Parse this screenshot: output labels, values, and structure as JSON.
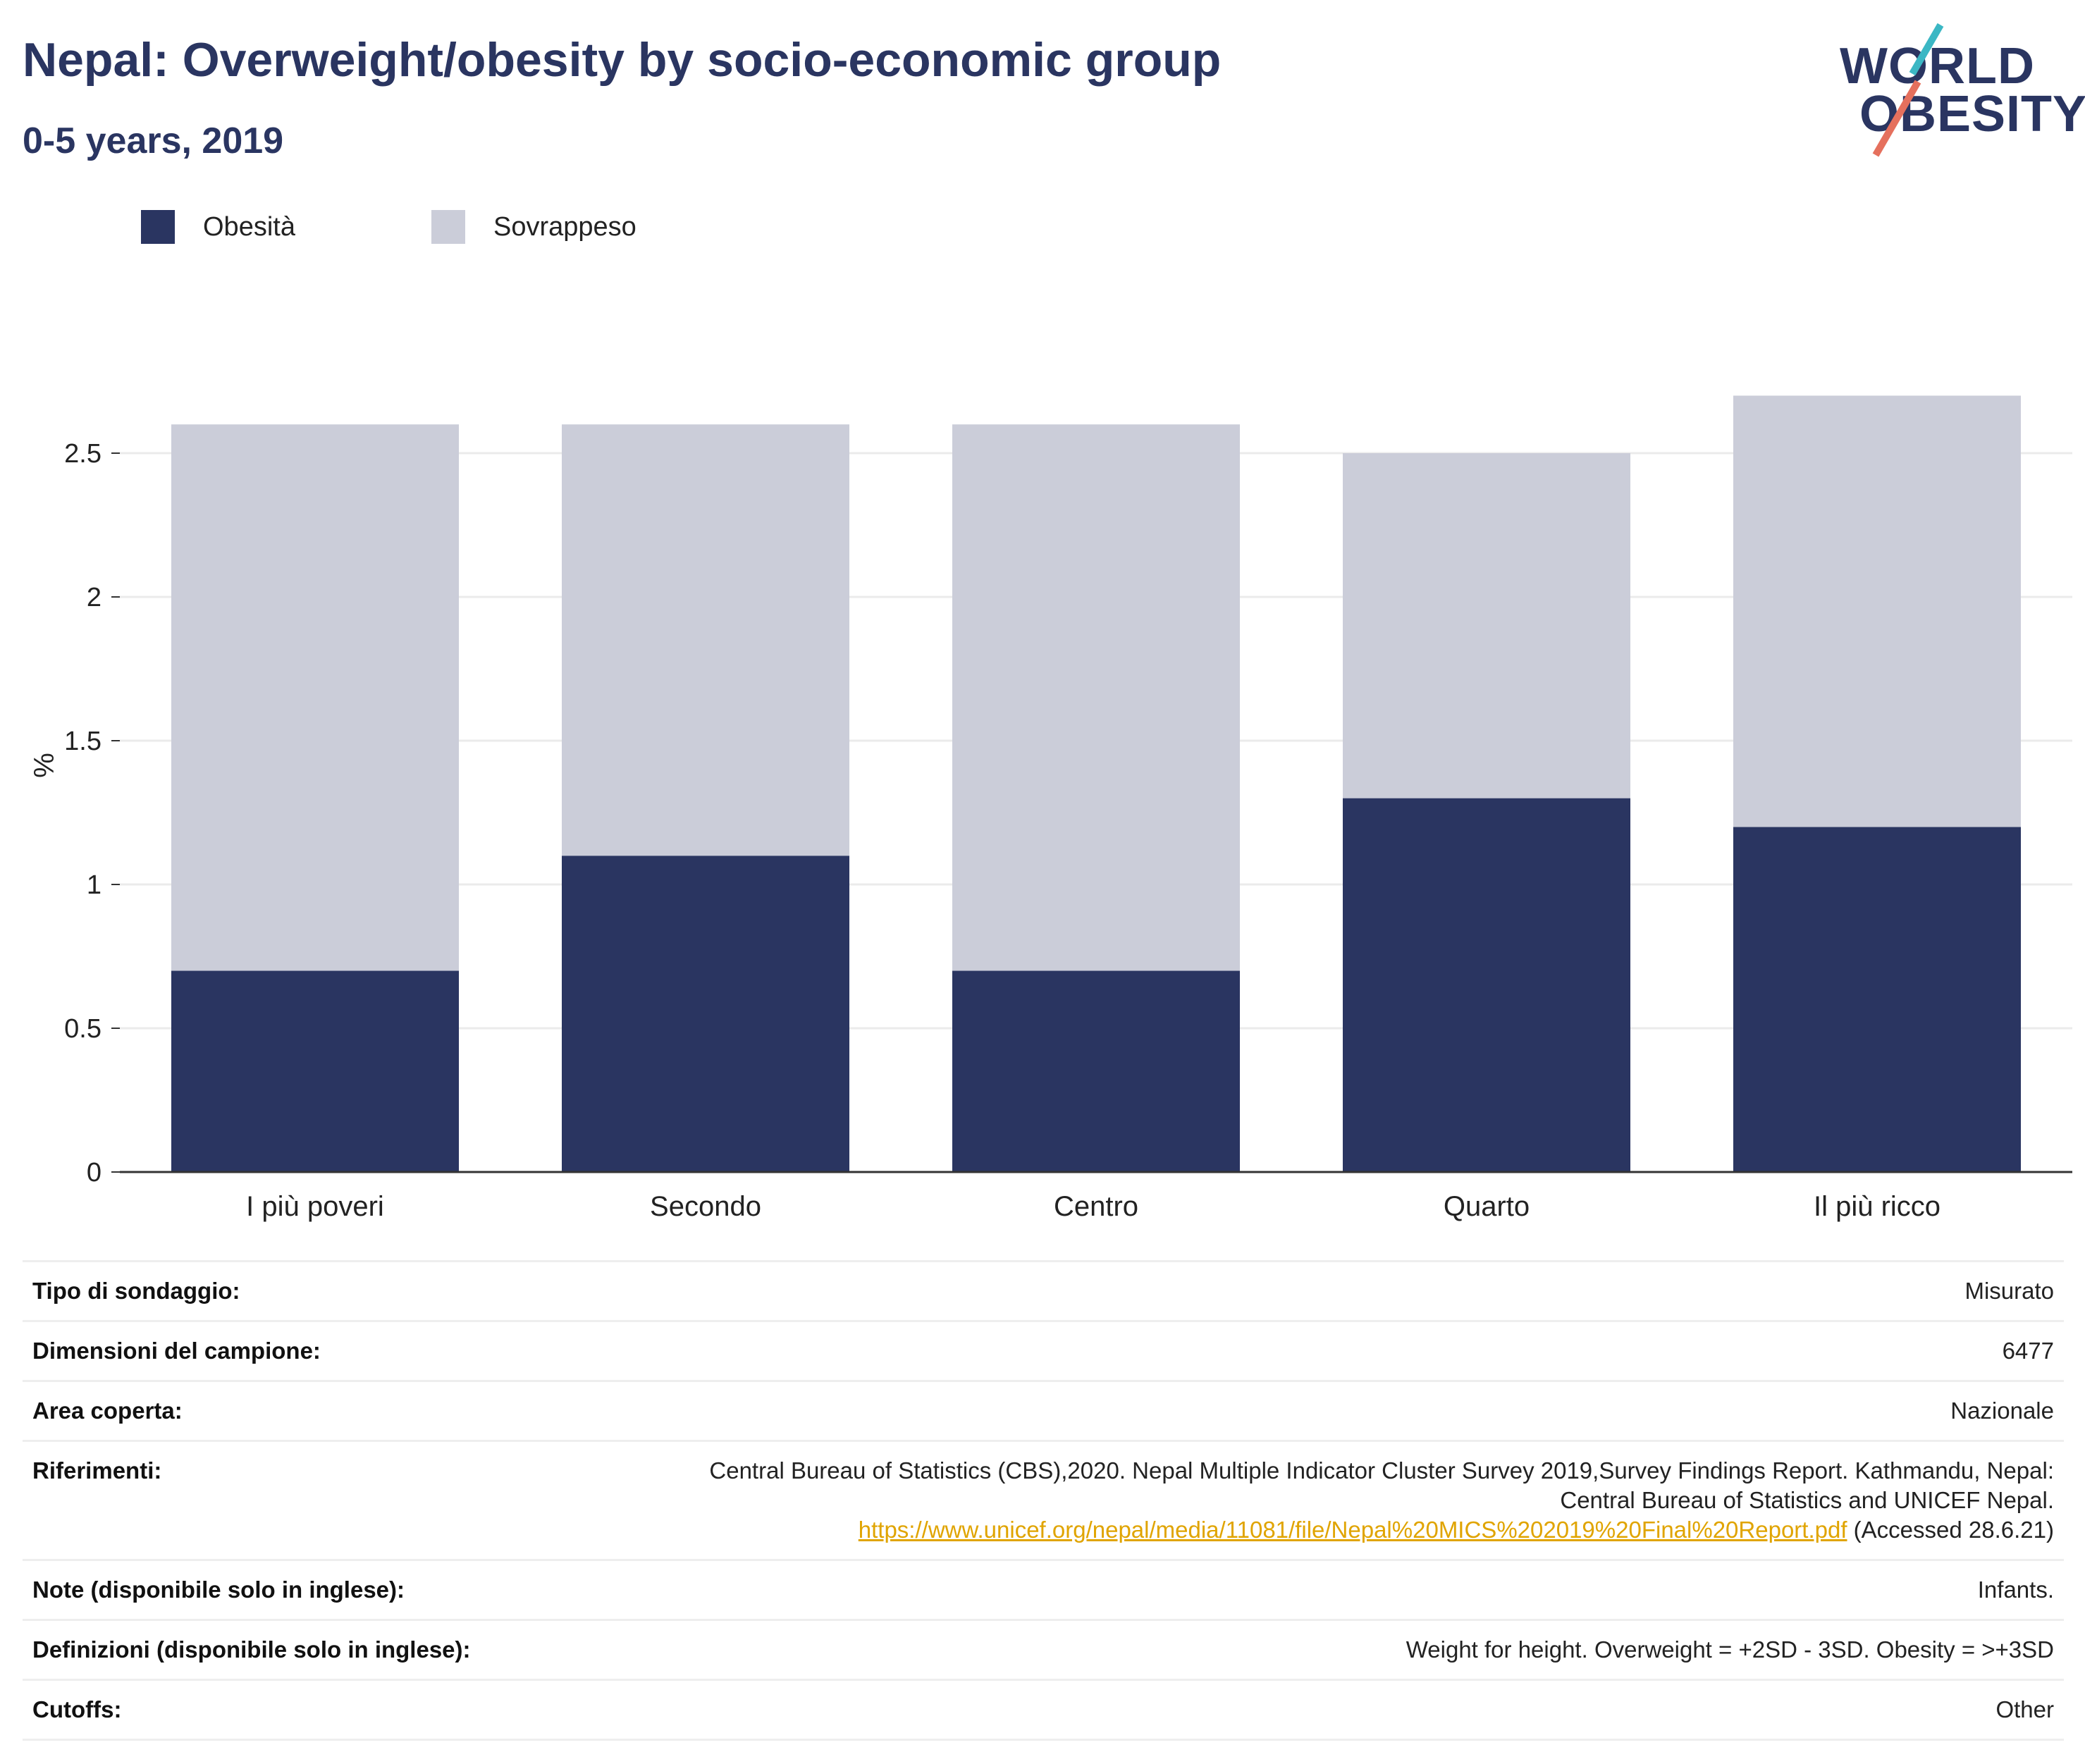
{
  "header": {
    "title": "Nepal: Overweight/obesity by socio-economic group",
    "subtitle": "0-5 years, 2019"
  },
  "logo": {
    "line1": "WORLD",
    "line2": "OBESITY"
  },
  "colors": {
    "obesity": "#2a3561",
    "overweight": "#cbcdd9",
    "accent_teal": "#3bb7c4",
    "accent_coral": "#e5705d",
    "link": "#e0a400"
  },
  "legend": [
    {
      "label": "Obesità",
      "color": "#2a3561"
    },
    {
      "label": "Sovrappeso",
      "color": "#cbcdd9"
    }
  ],
  "chart_data": {
    "type": "bar",
    "stacked": true,
    "categories": [
      "I più poveri",
      "Secondo",
      "Centro",
      "Quarto",
      "Il più ricco"
    ],
    "series": [
      {
        "name": "Obesità",
        "values": [
          0.7,
          1.1,
          0.7,
          1.3,
          1.2
        ]
      },
      {
        "name": "Sovrappeso",
        "values": [
          1.9,
          1.5,
          1.9,
          1.2,
          1.5
        ]
      }
    ],
    "totals": [
      2.6,
      2.6,
      2.6,
      2.5,
      2.7
    ],
    "ylabel": "%",
    "ylim": [
      0,
      2.8
    ],
    "yticks": [
      "0",
      "0.5",
      "1",
      "1.5",
      "2",
      "2.5"
    ],
    "ytick_values": [
      0,
      0.5,
      1,
      1.5,
      2,
      2.5
    ],
    "grid": true,
    "legend_position": "top-left"
  },
  "info": {
    "survey_type": {
      "label": "Tipo di sondaggio:",
      "value": "Misurato"
    },
    "sample_size": {
      "label": "Dimensioni del campione:",
      "value": "6477"
    },
    "area": {
      "label": "Area coperta:",
      "value": "Nazionale"
    },
    "references": {
      "label": "Riferimenti:",
      "text1": "Central Bureau of Statistics (CBS),2020. Nepal Multiple Indicator Cluster Survey 2019,Survey Findings Report. Kathmandu, Nepal:",
      "text2": "Central Bureau of Statistics and UNICEF Nepal.",
      "link": "https://www.unicef.org/nepal/media/11081/file/Nepal%20MICS%202019%20Final%20Report.pdf",
      "accessed": "(Accessed 28.6.21)"
    },
    "notes": {
      "label": "Note (disponibile solo in inglese):",
      "value": "Infants."
    },
    "definitions": {
      "label": "Definizioni (disponibile solo in inglese):",
      "value": "Weight for height. Overweight = +2SD - 3SD. Obesity = >+3SD"
    },
    "cutoffs": {
      "label": "Cutoffs:",
      "value": "Other"
    }
  }
}
